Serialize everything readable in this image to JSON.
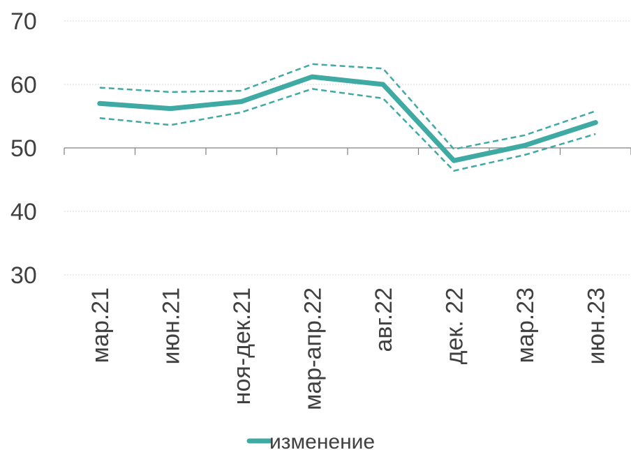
{
  "chart_data": {
    "type": "line",
    "title": "",
    "xlabel": "",
    "ylabel": "",
    "categories": [
      "мар.21",
      "июн.21",
      "ноя-дек.21",
      "мар-апр.22",
      "авг.22",
      "дек. 22",
      "мар.23",
      "июн.23"
    ],
    "ylim": [
      30,
      70
    ],
    "yticks": [
      30,
      40,
      50,
      60,
      70
    ],
    "x_axis_crosses_at": 50,
    "grid": true,
    "legend_position": "bottom",
    "series": [
      {
        "name": "изменение",
        "style": "solid",
        "values": [
          57.0,
          56.2,
          57.3,
          61.2,
          60.0,
          48.0,
          50.4,
          54.0
        ]
      },
      {
        "style": "dashed",
        "values": [
          59.5,
          58.8,
          59.0,
          63.2,
          62.5,
          49.8,
          52.0,
          55.8
        ]
      },
      {
        "style": "dashed",
        "values": [
          54.7,
          53.6,
          55.6,
          59.3,
          57.8,
          46.4,
          48.9,
          52.2
        ]
      }
    ],
    "colors": {
      "series": "#3fa9a3",
      "grid": "#d9d9d9",
      "axis": "#808080",
      "text": "#404040"
    }
  }
}
